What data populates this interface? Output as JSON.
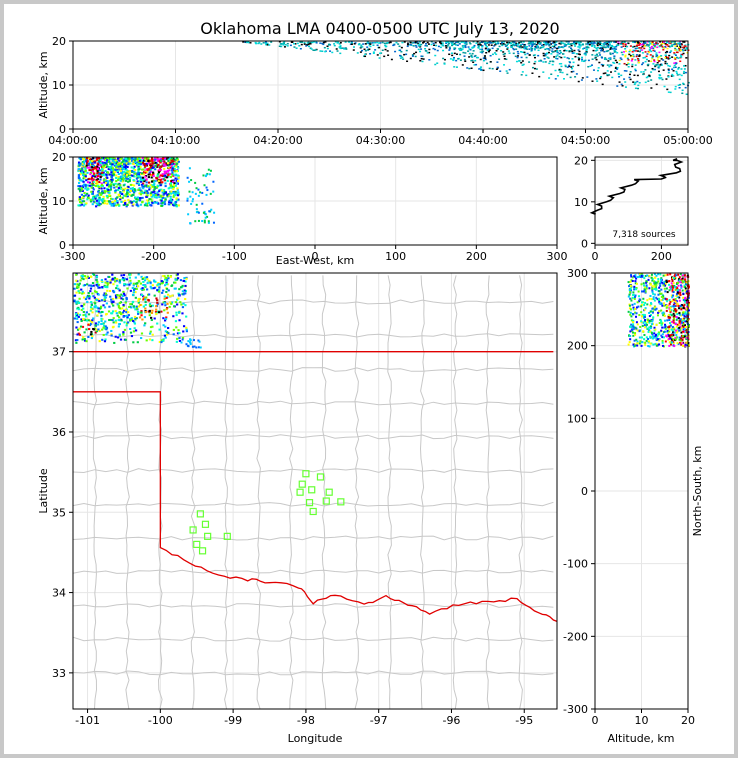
{
  "title": "Oklahoma LMA 0400-0500 UTC July 13, 2020",
  "colors": {
    "state_border": "#e00000",
    "county_lines": "#c8c8c8",
    "stations": "#66ff33",
    "grid": "#e6e6e6"
  },
  "chart_data": [
    {
      "id": "time-height",
      "type": "scatter",
      "xlabel": "",
      "ylabel": "Altitude, km",
      "x_ticks": [
        "04:00:00",
        "04:10:00",
        "04:20:00",
        "04:30:00",
        "04:40:00",
        "04:50:00",
        "05:00:00"
      ],
      "xlim_minutes": [
        0,
        60
      ],
      "y_ticks": [
        0,
        10,
        20
      ],
      "ylim": [
        0,
        20
      ],
      "points_desc": "colored source points, sparse from 04:20, dense 04:40-05:00 at 8-20 km"
    },
    {
      "id": "east-west-altitude",
      "type": "scatter",
      "xlabel": "East-West, km",
      "ylabel": "Altitude, km",
      "x_ticks": [
        -300,
        -200,
        -100,
        0,
        100,
        200,
        300
      ],
      "xlim": [
        -300,
        300
      ],
      "y_ticks": [
        0,
        10,
        20
      ],
      "ylim": [
        0,
        20
      ],
      "clusters": [
        {
          "x": [
            -295,
            -170
          ],
          "y": [
            8,
            20
          ]
        },
        {
          "x": [
            -160,
            -125
          ],
          "y": [
            5,
            18
          ]
        }
      ]
    },
    {
      "id": "altitude-histogram",
      "type": "line",
      "x_ticks": [
        0,
        200
      ],
      "xlim": [
        0,
        280
      ],
      "y_ticks": [
        0,
        10,
        20
      ],
      "ylim": [
        0,
        20
      ],
      "annotation": "7,318 sources",
      "profile": [
        {
          "alt": 7,
          "count": 2
        },
        {
          "alt": 8,
          "count": 8
        },
        {
          "alt": 9,
          "count": 20
        },
        {
          "alt": 10,
          "count": 35
        },
        {
          "alt": 11,
          "count": 55
        },
        {
          "alt": 12,
          "count": 75
        },
        {
          "alt": 13,
          "count": 90
        },
        {
          "alt": 14,
          "count": 110
        },
        {
          "alt": 15,
          "count": 130
        },
        {
          "alt": 15.5,
          "count": 200
        },
        {
          "alt": 16,
          "count": 210
        },
        {
          "alt": 17,
          "count": 245
        },
        {
          "alt": 18,
          "count": 255
        },
        {
          "alt": 19,
          "count": 240
        },
        {
          "alt": 19.6,
          "count": 260
        },
        {
          "alt": 20,
          "count": 235
        }
      ]
    },
    {
      "id": "plan-view",
      "type": "map",
      "xlabel": "Longitude",
      "ylabel": "Latitude",
      "x_ticks": [
        -101,
        -100,
        -99,
        -98,
        -97,
        -96,
        -95
      ],
      "xlim": [
        -101.2,
        -94.55
      ],
      "y_ticks": [
        33,
        34,
        35,
        36,
        37
      ],
      "ylim": [
        32.55,
        37.98
      ],
      "stations": [
        {
          "lon": -99.45,
          "lat": 34.98
        },
        {
          "lon": -99.38,
          "lat": 34.85
        },
        {
          "lon": -99.55,
          "lat": 34.78
        },
        {
          "lon": -99.35,
          "lat": 34.7
        },
        {
          "lon": -99.5,
          "lat": 34.6
        },
        {
          "lon": -99.42,
          "lat": 34.52
        },
        {
          "lon": -99.08,
          "lat": 34.7
        },
        {
          "lon": -98.0,
          "lat": 35.48
        },
        {
          "lon": -97.8,
          "lat": 35.44
        },
        {
          "lon": -98.05,
          "lat": 35.35
        },
        {
          "lon": -97.92,
          "lat": 35.28
        },
        {
          "lon": -98.08,
          "lat": 35.25
        },
        {
          "lon": -97.68,
          "lat": 35.25
        },
        {
          "lon": -97.95,
          "lat": 35.12
        },
        {
          "lon": -97.72,
          "lat": 35.14
        },
        {
          "lon": -97.52,
          "lat": 35.13
        },
        {
          "lon": -97.9,
          "lat": 35.01
        }
      ],
      "sources": [
        {
          "lon": [
            -101.2,
            -99.6
          ],
          "lat": [
            37.1,
            37.98
          ]
        },
        {
          "lon": [
            -99.8,
            -99.4
          ],
          "lat": [
            37.05,
            37.25
          ]
        }
      ]
    },
    {
      "id": "altitude-north-south",
      "type": "scatter",
      "xlabel": "Altitude, km",
      "ylabel": "North-South, km",
      "x_ticks": [
        0,
        10,
        20
      ],
      "xlim": [
        0,
        20
      ],
      "y_ticks": [
        -300,
        -200,
        -100,
        0,
        100,
        200,
        300
      ],
      "ylim": [
        -300,
        300
      ],
      "clusters": [
        {
          "x": [
            7,
            20
          ],
          "y": [
            200,
            300
          ]
        }
      ]
    }
  ]
}
